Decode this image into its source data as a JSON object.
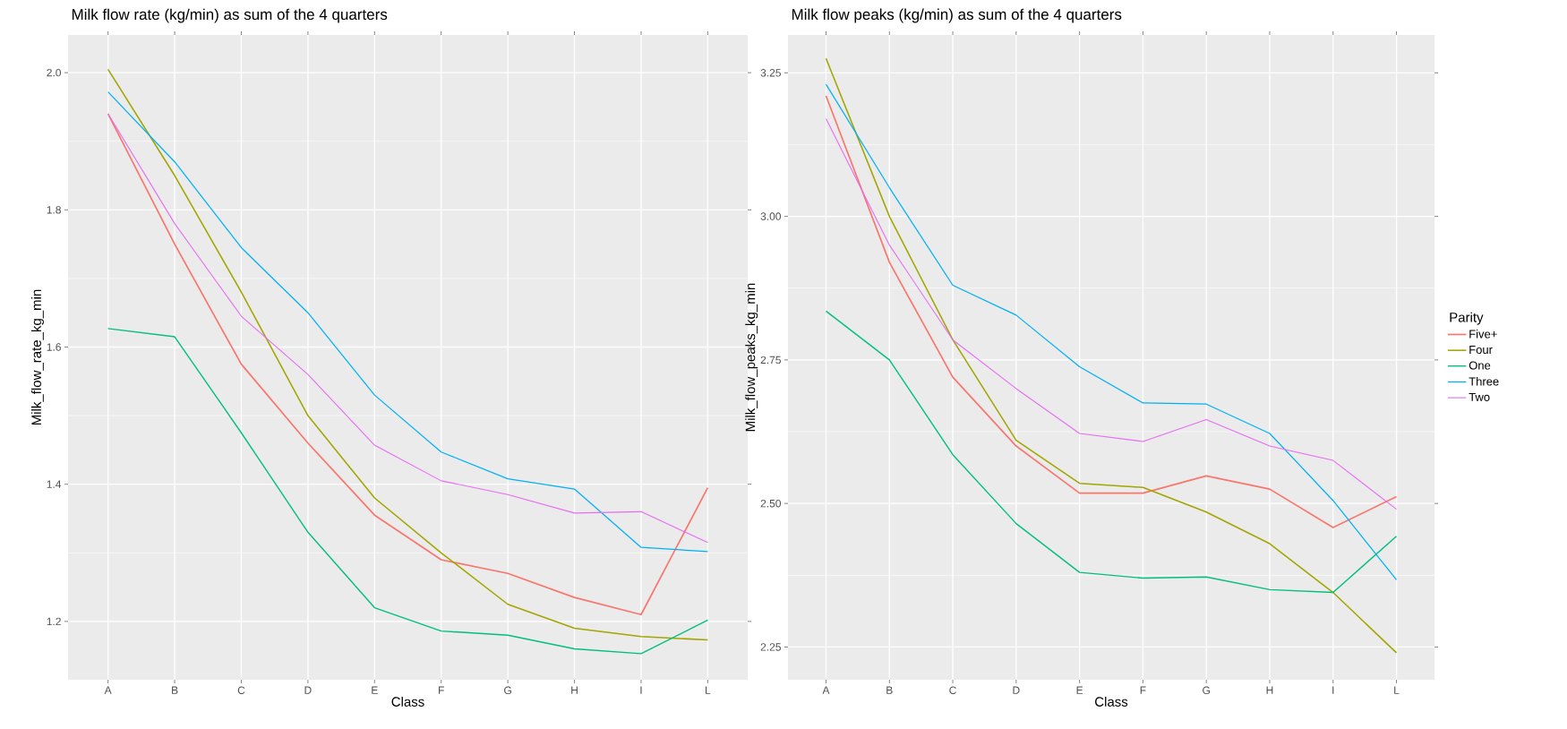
{
  "chart_data": [
    {
      "type": "line",
      "title": "Milk flow rate (kg/min) as sum of the 4 quarters",
      "xlabel": "Class",
      "ylabel": "Milk_flow_rate_kg_min",
      "categories": [
        "A",
        "B",
        "C",
        "D",
        "E",
        "F",
        "G",
        "H",
        "I",
        "L"
      ],
      "ylim": [
        1.115,
        2.055
      ],
      "yticks": [
        1.2,
        1.4,
        1.6,
        1.8,
        {
          "value": 2.0,
          "label": "2.0"
        }
      ],
      "grid": true,
      "series": [
        {
          "color": "#f8766d",
          "values": [
            1.94,
            1.75,
            1.575,
            1.46,
            1.355,
            1.29,
            1.27,
            1.235,
            1.21,
            1.395
          ]
        },
        {
          "color": "#a3a500",
          "values": [
            2.005,
            1.85,
            1.68,
            1.5,
            1.38,
            1.3,
            1.225,
            1.19,
            1.178,
            1.173
          ]
        },
        {
          "color": "#00bf7d",
          "values": [
            1.627,
            1.615,
            1.475,
            1.33,
            1.22,
            1.186,
            1.18,
            1.16,
            1.153,
            1.202
          ]
        },
        {
          "color": "#00b0f6",
          "values": [
            1.972,
            1.87,
            1.745,
            1.65,
            1.53,
            1.447,
            1.408,
            1.393,
            1.308,
            1.302
          ]
        },
        {
          "color": "#e76bf3",
          "values": [
            1.94,
            1.78,
            1.645,
            1.56,
            1.457,
            1.405,
            1.385,
            1.358,
            1.36,
            1.315
          ]
        }
      ]
    },
    {
      "type": "line",
      "title": "Milk flow peaks (kg/min) as sum of the 4 quarters",
      "xlabel": "Class",
      "ylabel": "Milk_flow_peaks_kg_min",
      "categories": [
        "A",
        "B",
        "C",
        "D",
        "E",
        "F",
        "G",
        "H",
        "I",
        "L"
      ],
      "ylim": [
        2.193,
        3.316
      ],
      "yticks": [
        2.25,
        {
          "value": 2.5,
          "label": "2.50"
        },
        2.75,
        {
          "value": 3.0,
          "label": "3.00"
        },
        3.25
      ],
      "grid": true,
      "legend": "right",
      "legend_title": "Parity",
      "series": [
        {
          "name": "Five+",
          "color": "#f8766d",
          "values": [
            3.21,
            2.92,
            2.72,
            2.6,
            2.518,
            2.518,
            2.548,
            2.525,
            2.458,
            2.512
          ]
        },
        {
          "name": "Four",
          "color": "#a3a500",
          "values": [
            3.275,
            3.0,
            2.785,
            2.61,
            2.535,
            2.528,
            2.485,
            2.43,
            2.345,
            2.24
          ]
        },
        {
          "name": "One",
          "color": "#00bf7d",
          "values": [
            2.835,
            2.75,
            2.585,
            2.465,
            2.38,
            2.37,
            2.372,
            2.35,
            2.345,
            2.443
          ]
        },
        {
          "name": "Three",
          "color": "#00b0f6",
          "values": [
            3.23,
            3.05,
            2.88,
            2.828,
            2.738,
            2.675,
            2.673,
            2.622,
            2.505,
            2.367
          ]
        },
        {
          "name": "Two",
          "color": "#e76bf3",
          "values": [
            3.17,
            2.95,
            2.785,
            2.7,
            2.622,
            2.608,
            2.646,
            2.6,
            2.575,
            2.49
          ]
        }
      ]
    }
  ]
}
